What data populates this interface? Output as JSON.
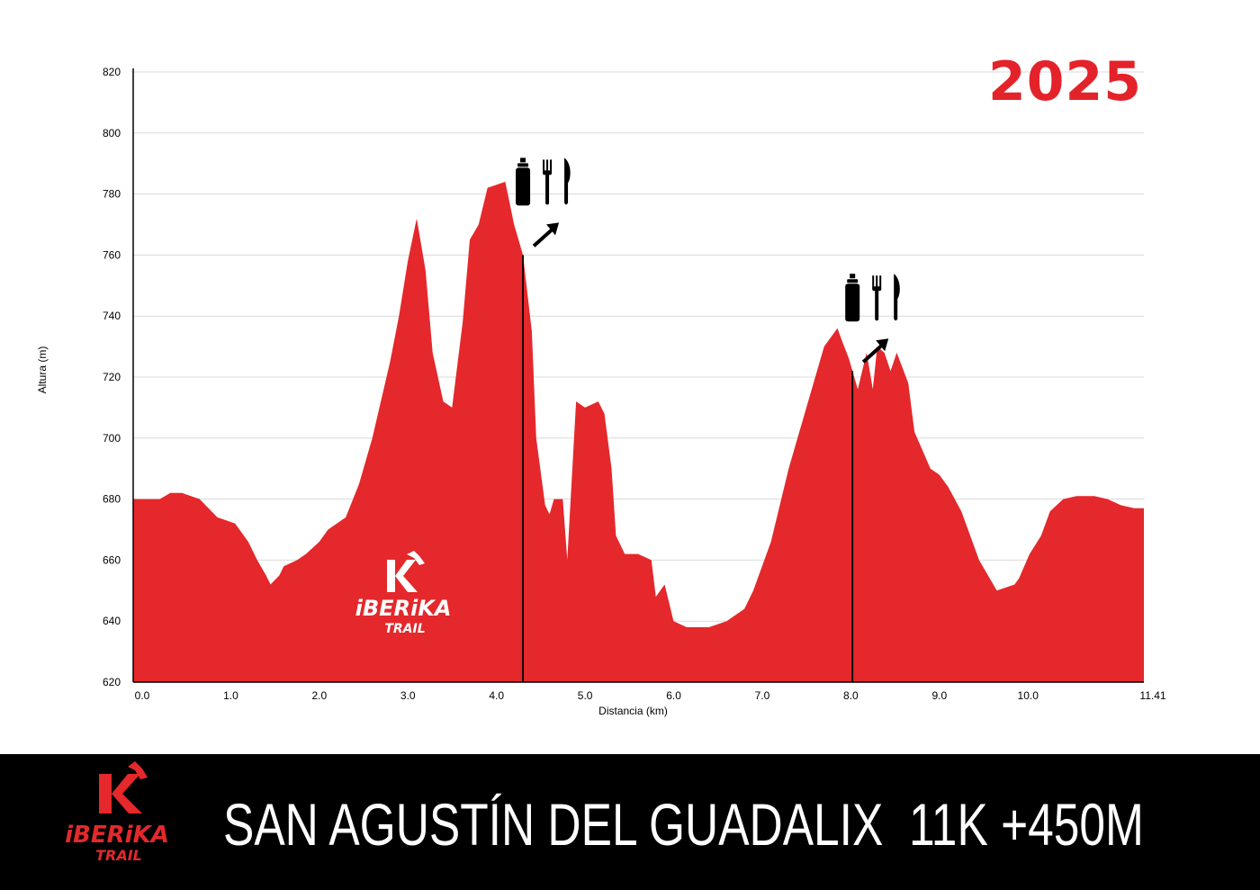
{
  "year": "2025",
  "footer": {
    "title": "SAN AGUSTÍN DEL GUADALIX",
    "stats": "11K +450M"
  },
  "logo": {
    "word": "iBERiKA",
    "sub": "TRAIL"
  },
  "colors": {
    "fill": "#e4282b",
    "grid": "#d9d9d9",
    "footer_bg": "#000000",
    "year": "#e4222a"
  },
  "icons": [
    "bottle-icon",
    "fork-icon",
    "knife-icon",
    "arrow-icon"
  ],
  "chart_data": {
    "type": "area",
    "xlabel": "Distancia (km)",
    "ylabel": "Altura (m)",
    "xlim": [
      0,
      11.41
    ],
    "ylim": [
      620,
      820
    ],
    "x_ticks": [
      0.0,
      1.0,
      2.0,
      3.0,
      4.0,
      5.0,
      6.0,
      7.0,
      8.0,
      9.0,
      10.0,
      11.41
    ],
    "x_tick_labels": [
      "0.0",
      "1.0",
      "2.0",
      "3.0",
      "4.0",
      "5.0",
      "6.0",
      "7.0",
      "8.0",
      "9.0",
      "10.0",
      "11.41"
    ],
    "y_ticks": [
      620,
      640,
      660,
      680,
      700,
      720,
      740,
      760,
      780,
      800,
      820
    ],
    "grid": "horizontal",
    "aid_stations_km": [
      4.4,
      8.12
    ],
    "series": [
      {
        "x": [
          0.0,
          0.3,
          0.42,
          0.55,
          0.75,
          0.95,
          1.15,
          1.2,
          1.3,
          1.4,
          1.5,
          1.55,
          1.65,
          1.7,
          1.85,
          1.95,
          2.1,
          2.2,
          2.4,
          2.55,
          2.7,
          2.9,
          3.0,
          3.1,
          3.2,
          3.3,
          3.38,
          3.5,
          3.6,
          3.72,
          3.8,
          3.9,
          4.0,
          4.2,
          4.3,
          4.4,
          4.5,
          4.55,
          4.65,
          4.7,
          4.75,
          4.85,
          4.9,
          5.0,
          5.1,
          5.25,
          5.32,
          5.4,
          5.45,
          5.55,
          5.7,
          5.85,
          5.9,
          6.0,
          6.1,
          6.25,
          6.4,
          6.5,
          6.7,
          6.9,
          7.0,
          7.2,
          7.4,
          7.6,
          7.8,
          7.95,
          8.0,
          8.08,
          8.12,
          8.18,
          8.28,
          8.35,
          8.4,
          8.48,
          8.55,
          8.62,
          8.75,
          8.82,
          9.0,
          9.1,
          9.2,
          9.35,
          9.55,
          9.75,
          9.95,
          10.0,
          10.12,
          10.25,
          10.35,
          10.5,
          10.65,
          10.85,
          11.0,
          11.15,
          11.3,
          11.41
        ],
        "y": [
          680,
          680,
          682,
          682,
          680,
          674,
          672,
          670,
          666,
          660,
          655,
          652,
          655,
          658,
          660,
          662,
          666,
          670,
          674,
          685,
          700,
          725,
          740,
          758,
          772,
          755,
          728,
          712,
          710,
          738,
          765,
          770,
          782,
          784,
          770,
          760,
          735,
          700,
          678,
          675,
          680,
          680,
          660,
          712,
          710,
          712,
          708,
          690,
          668,
          662,
          662,
          660,
          648,
          652,
          640,
          638,
          638,
          638,
          640,
          644,
          650,
          666,
          690,
          710,
          730,
          736,
          732,
          726,
          722,
          716,
          728,
          716,
          730,
          728,
          722,
          728,
          718,
          702,
          690,
          688,
          684,
          676,
          660,
          650,
          652,
          654,
          662,
          668,
          676,
          680,
          681,
          681,
          680,
          678,
          677,
          677
        ]
      }
    ]
  }
}
